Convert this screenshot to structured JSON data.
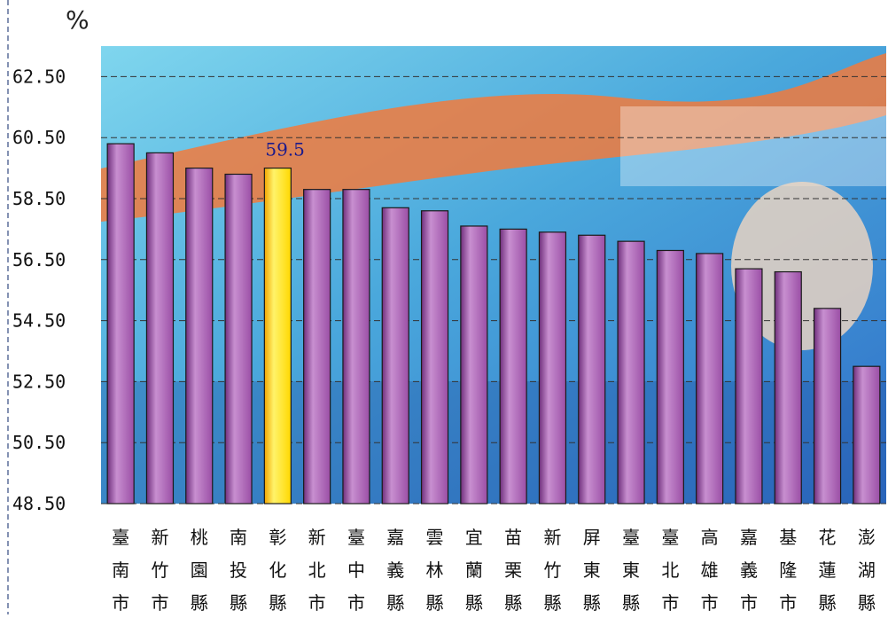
{
  "page": {
    "unit": "%"
  },
  "chart_data": {
    "type": "bar",
    "title": "",
    "xlabel": "",
    "ylabel": "%",
    "ylim": [
      48.5,
      63.5
    ],
    "yticks": [
      "62.50",
      "60.50",
      "58.50",
      "56.50",
      "54.50",
      "52.50",
      "50.50",
      "48.50"
    ],
    "ytick_values": [
      62.5,
      60.5,
      58.5,
      56.5,
      54.5,
      52.5,
      50.5,
      48.5
    ],
    "grid": "horizontal dashed",
    "categories": [
      "臺南市",
      "新竹市",
      "桃園縣",
      "南投縣",
      "彰化縣",
      "新北市",
      "臺中市",
      "嘉義縣",
      "雲林縣",
      "宜蘭縣",
      "苗栗縣",
      "新竹縣",
      "屏東縣",
      "臺東縣",
      "臺北市",
      "高雄市",
      "嘉義市",
      "基隆市",
      "花蓮縣",
      "澎湖縣"
    ],
    "values": [
      60.3,
      60.0,
      59.5,
      59.3,
      59.5,
      58.8,
      58.8,
      58.2,
      58.1,
      57.6,
      57.5,
      57.4,
      57.3,
      57.1,
      56.8,
      56.7,
      56.2,
      56.1,
      54.9,
      53.0
    ],
    "highlight_index": 4,
    "data_labels": [
      {
        "index": 4,
        "text": "59.5"
      }
    ],
    "colors": {
      "bar": "#9b4fa6",
      "bar_light": "#c88fd0",
      "bar_dark": "#6f2f7c",
      "highlight": "#ffd800",
      "highlight_light": "#fff36a",
      "highlight_dark": "#f2a400",
      "gridline": "#333333",
      "label": "#1a1a8c"
    }
  }
}
